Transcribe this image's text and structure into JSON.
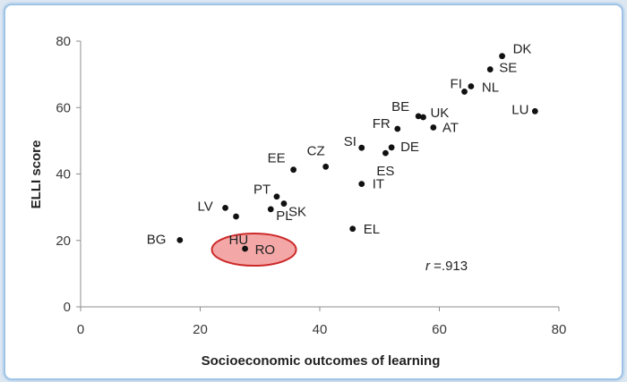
{
  "chart_data": {
    "type": "scatter",
    "title": "",
    "xlabel": "Socioeconomic outcomes of learning",
    "ylabel": "ELLI score",
    "xlim": [
      0,
      80
    ],
    "ylim": [
      0,
      80
    ],
    "xticks": [
      0,
      20,
      40,
      60,
      80
    ],
    "yticks": [
      0,
      20,
      40,
      60,
      80
    ],
    "grid": false,
    "annotation": {
      "italic": "r",
      "text": " =.913"
    },
    "highlight": {
      "label": "RO",
      "color": "#f4a7a7",
      "stroke": "#cc2a2a"
    },
    "points": [
      {
        "label": "DK",
        "x": 70.5,
        "y": 75.5
      },
      {
        "label": "SE",
        "x": 68.5,
        "y": 71.5
      },
      {
        "label": "FI",
        "x": 64.2,
        "y": 64.8
      },
      {
        "label": "NL",
        "x": 65.3,
        "y": 66.4
      },
      {
        "label": "LU",
        "x": 76.0,
        "y": 58.9
      },
      {
        "label": "BE",
        "x": 56.5,
        "y": 57.4
      },
      {
        "label": "UK",
        "x": 57.3,
        "y": 57.1
      },
      {
        "label": "AT",
        "x": 59.0,
        "y": 54.0
      },
      {
        "label": "FR",
        "x": 53.0,
        "y": 53.6
      },
      {
        "label": "SI",
        "x": 47.0,
        "y": 47.9
      },
      {
        "label": "DE",
        "x": 52.0,
        "y": 48.0
      },
      {
        "label": "ES",
        "x": 51.0,
        "y": 46.3
      },
      {
        "label": "CZ",
        "x": 41.0,
        "y": 42.2
      },
      {
        "label": "EE",
        "x": 35.6,
        "y": 41.3
      },
      {
        "label": "IT",
        "x": 47.0,
        "y": 37.0
      },
      {
        "label": "PT",
        "x": 32.8,
        "y": 33.2
      },
      {
        "label": "SK",
        "x": 34.0,
        "y": 31.1
      },
      {
        "label": "PL",
        "x": 31.8,
        "y": 29.4
      },
      {
        "label": "LV",
        "x": 24.2,
        "y": 29.8
      },
      {
        "label": "HU",
        "x": 26.0,
        "y": 27.2
      },
      {
        "label": "EL",
        "x": 45.5,
        "y": 23.5
      },
      {
        "label": "BG",
        "x": 16.6,
        "y": 20.1
      },
      {
        "label": "RO",
        "x": 27.5,
        "y": 17.5
      }
    ]
  }
}
